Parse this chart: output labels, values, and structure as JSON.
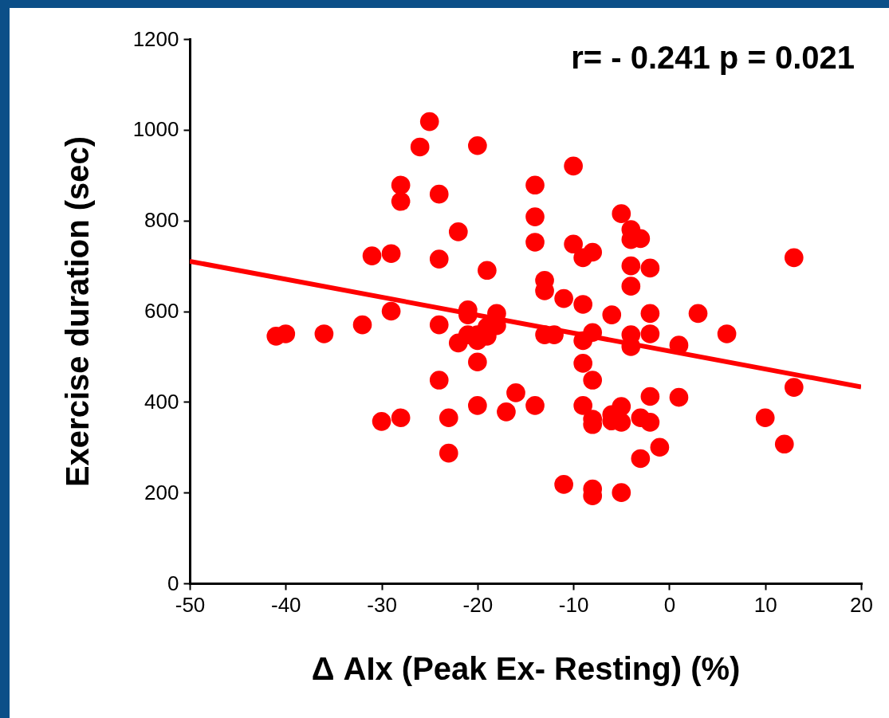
{
  "chart_data": {
    "type": "scatter",
    "xlabel": "Δ AIx (Peak Ex- Resting) (%)",
    "ylabel": "Exercise duration (sec)",
    "annotations": [
      "r= - 0.241 p = 0.021"
    ],
    "xlim": [
      -50,
      20
    ],
    "ylim": [
      0,
      1200
    ],
    "xticks": [
      -50,
      -40,
      -30,
      -20,
      -10,
      0,
      10,
      20
    ],
    "yticks": [
      0,
      200,
      400,
      600,
      800,
      1000,
      1200
    ],
    "grid": false,
    "marker": "circle",
    "series": [
      {
        "color": "#ff0000",
        "x": [
          -41,
          -40,
          -36,
          -32,
          -31,
          -30,
          -29,
          -29,
          -28,
          -28,
          -28,
          -26,
          -25,
          -24,
          -24,
          -24,
          -24,
          -23,
          -23,
          -22,
          -22,
          -21,
          -21,
          -21,
          -20,
          -20,
          -20,
          -20,
          -20,
          -19,
          -19,
          -19,
          -18,
          -18,
          -17,
          -16,
          -14,
          -14,
          -14,
          -14,
          -13,
          -13,
          -13,
          -12,
          -11,
          -11,
          -10,
          -10,
          -9,
          -9,
          -9,
          -9,
          -9,
          -8,
          -8,
          -8,
          -8,
          -8,
          -8,
          -8,
          -6,
          -6,
          -6,
          -5,
          -5,
          -5,
          -5,
          -4,
          -4,
          -4,
          -4,
          -4,
          -4,
          -3,
          -3,
          -3,
          -2,
          -2,
          -2,
          -2,
          -2,
          -1,
          1,
          1,
          3,
          6,
          10,
          12,
          13,
          13
        ],
        "values": [
          545,
          550,
          550,
          570,
          722,
          357,
          727,
          600,
          365,
          878,
          842,
          962,
          1018,
          858,
          715,
          570,
          448,
          365,
          287,
          775,
          530,
          603,
          592,
          548,
          965,
          548,
          535,
          488,
          392,
          690,
          565,
          545,
          595,
          568,
          378,
          420,
          878,
          808,
          752,
          392,
          668,
          645,
          548,
          548,
          628,
          218,
          920,
          748,
          718,
          615,
          535,
          485,
          392,
          730,
          553,
          448,
          362,
          350,
          208,
          193,
          592,
          372,
          358,
          815,
          390,
          355,
          200,
          780,
          758,
          700,
          655,
          548,
          522,
          760,
          365,
          275,
          695,
          595,
          550,
          412,
          355,
          300,
          525,
          410,
          595,
          550,
          365,
          307,
          718,
          432
        ]
      },
      {
        "type": "line",
        "color": "#ff0000",
        "line_style": "solid",
        "marker": "none",
        "x": [
          -50,
          20
        ],
        "values": [
          710,
          433
        ]
      }
    ]
  }
}
